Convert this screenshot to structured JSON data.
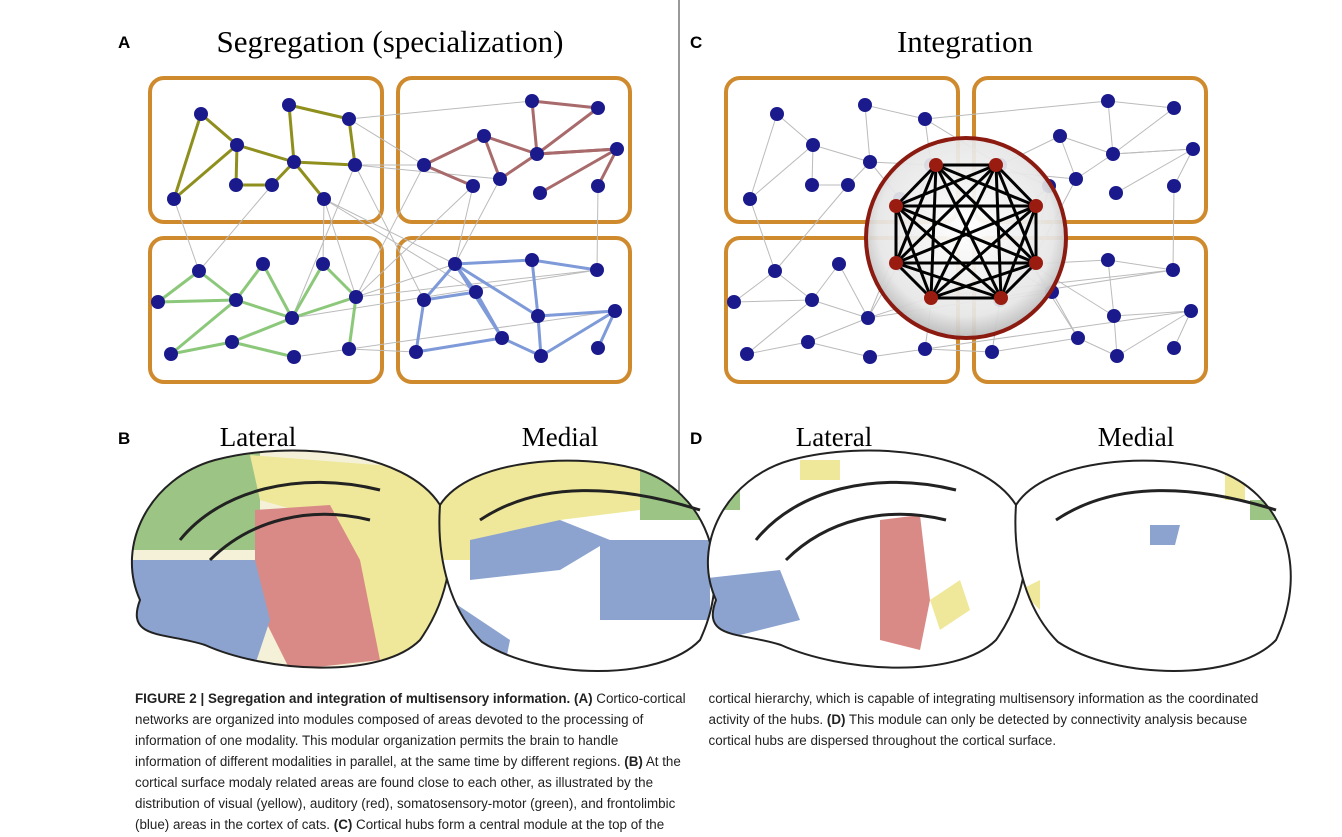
{
  "panels": [
    {
      "label": "A",
      "title": "Segregation (specialization)"
    },
    {
      "label": "C",
      "title": "Integration"
    },
    {
      "label": "B",
      "views": [
        "Lateral",
        "Medial"
      ]
    },
    {
      "label": "D",
      "views": [
        "Lateral",
        "Medial"
      ]
    }
  ],
  "caption": [
    {
      "text": "FIGURE 2 | Segregation and integration of multisensory information. (A)",
      "bold": true
    },
    {
      "text": " Cortico-cortical networks are organized into modules composed of areas devoted to the processing of information of one modality. This modular organization permits the brain to handle information of different modalities in parallel, at the same time by different regions. ",
      "bold": false
    },
    {
      "text": "(B)",
      "bold": true
    },
    {
      "text": " At the cortical surface modaly related areas are found close to each other, as illustrated by the distribution of visual (yellow), auditory (red), somatosensory-motor (green), and frontolimbic (blue) areas in the cortex of cats. ",
      "bold": false
    },
    {
      "text": "(C)",
      "bold": true
    },
    {
      "text": " Cortical hubs form a central module at the top of the cortical hierarchy, which is capable of integrating multisensory information as the coordinated activity of the hubs. ",
      "bold": false
    },
    {
      "text": "(D)",
      "bold": true
    },
    {
      "text": " This module can only be detected by connectivity analysis because cortical hubs are dispersed throughout the cortical surface.",
      "bold": false
    }
  ]
}
